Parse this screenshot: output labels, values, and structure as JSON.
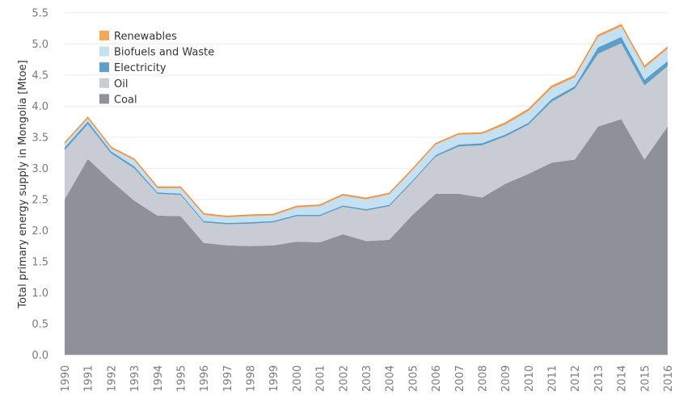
{
  "chart_data": {
    "type": "area",
    "stacked": true,
    "ylabel": "Total primary energy supply in Mongolia [Mtoe]",
    "xlabel": "",
    "ylim": [
      -0.1,
      5.55
    ],
    "yticks": [
      "0.0",
      "0.5",
      "1.0",
      "1.5",
      "2.0",
      "2.5",
      "3.0",
      "3.5",
      "4.0",
      "4.5",
      "5.0",
      "5.5"
    ],
    "x": [
      "1990",
      "1991",
      "1992",
      "1993",
      "1994",
      "1995",
      "1996",
      "1997",
      "1998",
      "1999",
      "2000",
      "2001",
      "2002",
      "2003",
      "2004",
      "2005",
      "2006",
      "2007",
      "2008",
      "2009",
      "2010",
      "2011",
      "2012",
      "2013",
      "2014",
      "2015",
      "2016"
    ],
    "grid": true,
    "legend_position": "top-left",
    "series": [
      {
        "name": "Coal",
        "color": "#8e9197",
        "values": [
          2.5,
          3.15,
          2.8,
          2.48,
          2.24,
          2.23,
          1.8,
          1.76,
          1.75,
          1.76,
          1.82,
          1.81,
          1.94,
          1.83,
          1.85,
          2.25,
          2.59,
          2.59,
          2.53,
          2.75,
          2.91,
          3.09,
          3.14,
          3.67,
          3.79,
          3.14,
          3.67
        ]
      },
      {
        "name": "Oil",
        "color": "#c9ccd3",
        "values": [
          0.79,
          0.56,
          0.44,
          0.52,
          0.35,
          0.34,
          0.33,
          0.34,
          0.36,
          0.37,
          0.41,
          0.42,
          0.44,
          0.49,
          0.54,
          0.53,
          0.6,
          0.76,
          0.84,
          0.76,
          0.79,
          0.98,
          1.14,
          1.17,
          1.22,
          1.19,
          0.97
        ]
      },
      {
        "name": "Electricity",
        "color": "#5f9ec9",
        "values": [
          0.04,
          0.04,
          0.03,
          0.03,
          0.02,
          0.02,
          0.02,
          0.02,
          0.02,
          0.02,
          0.02,
          0.02,
          0.02,
          0.02,
          0.02,
          0.02,
          0.02,
          0.03,
          0.03,
          0.03,
          0.03,
          0.04,
          0.04,
          0.1,
          0.1,
          0.09,
          0.08
        ]
      },
      {
        "name": "Biofuels and Waste",
        "color": "#c5e0f0",
        "values": [
          0.06,
          0.05,
          0.05,
          0.1,
          0.07,
          0.09,
          0.1,
          0.09,
          0.1,
          0.09,
          0.12,
          0.14,
          0.16,
          0.16,
          0.17,
          0.17,
          0.17,
          0.16,
          0.15,
          0.16,
          0.19,
          0.18,
          0.14,
          0.17,
          0.17,
          0.19,
          0.2
        ]
      },
      {
        "name": "Renewables",
        "color": "#f4a65b",
        "values": [
          0.02,
          0.02,
          0.02,
          0.02,
          0.02,
          0.02,
          0.02,
          0.02,
          0.02,
          0.02,
          0.02,
          0.02,
          0.02,
          0.02,
          0.02,
          0.02,
          0.02,
          0.02,
          0.02,
          0.03,
          0.03,
          0.03,
          0.03,
          0.03,
          0.03,
          0.03,
          0.03
        ]
      }
    ]
  }
}
